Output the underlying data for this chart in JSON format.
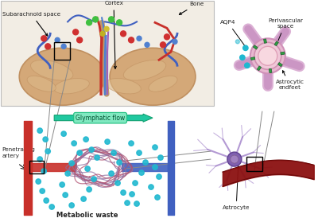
{
  "bg_color": "#ffffff",
  "bone_yellow": "#e8c84a",
  "bone_outer": "#d4aa30",
  "dura_orange": "#e8a060",
  "meninges_color": "#f0c080",
  "csf_blue": "#b8d8f0",
  "brain_tan": "#d4a878",
  "brain_dark": "#c09060",
  "brain_light": "#dbb888",
  "sulcus_color": "#c09868",
  "vessel_red": "#c8302a",
  "vessel_blue": "#4060c0",
  "vessel_blue2": "#5080d0",
  "vessel_purple": "#8060a0",
  "vessel_darkred": "#902020",
  "lymph_green": "#20c060",
  "lymph_teal": "#40d090",
  "lymph_bg": "#80e0b0",
  "dot_cyan": "#20b8d0",
  "dot_red": "#d03030",
  "dot_green_bright": "#40c040",
  "dot_blue": "#4080d0",
  "green_marker": "#30a040",
  "astro_pink": "#c890c0",
  "astro_lavender": "#d8a8d0",
  "perivascular_outer": "#d090b8",
  "perivascular_ring": "#e8b8d0",
  "lumen_pink": "#f8d8e0",
  "lumen_inner": "#fce8ec",
  "neuron_purple": "#8060b0",
  "neuron_light": "#a080c8",
  "darkred_vessel": "#8b1010",
  "annotation_color": "#222222",
  "gray_line": "#888888",
  "labels": {
    "subarachnoid": "Subarachnoid space",
    "cortex": "Cortex",
    "bone": "Bone",
    "aqp4": "AQP4",
    "perivascular": "Perivascular\nspace",
    "astrocytic": "Astrocytic\nendfeet",
    "glymphatic": "Glymphatic flow",
    "penetrating": "Penetrating\nartery",
    "metabolic": "Metabolic waste",
    "astrocyte": "Astrocyte"
  }
}
